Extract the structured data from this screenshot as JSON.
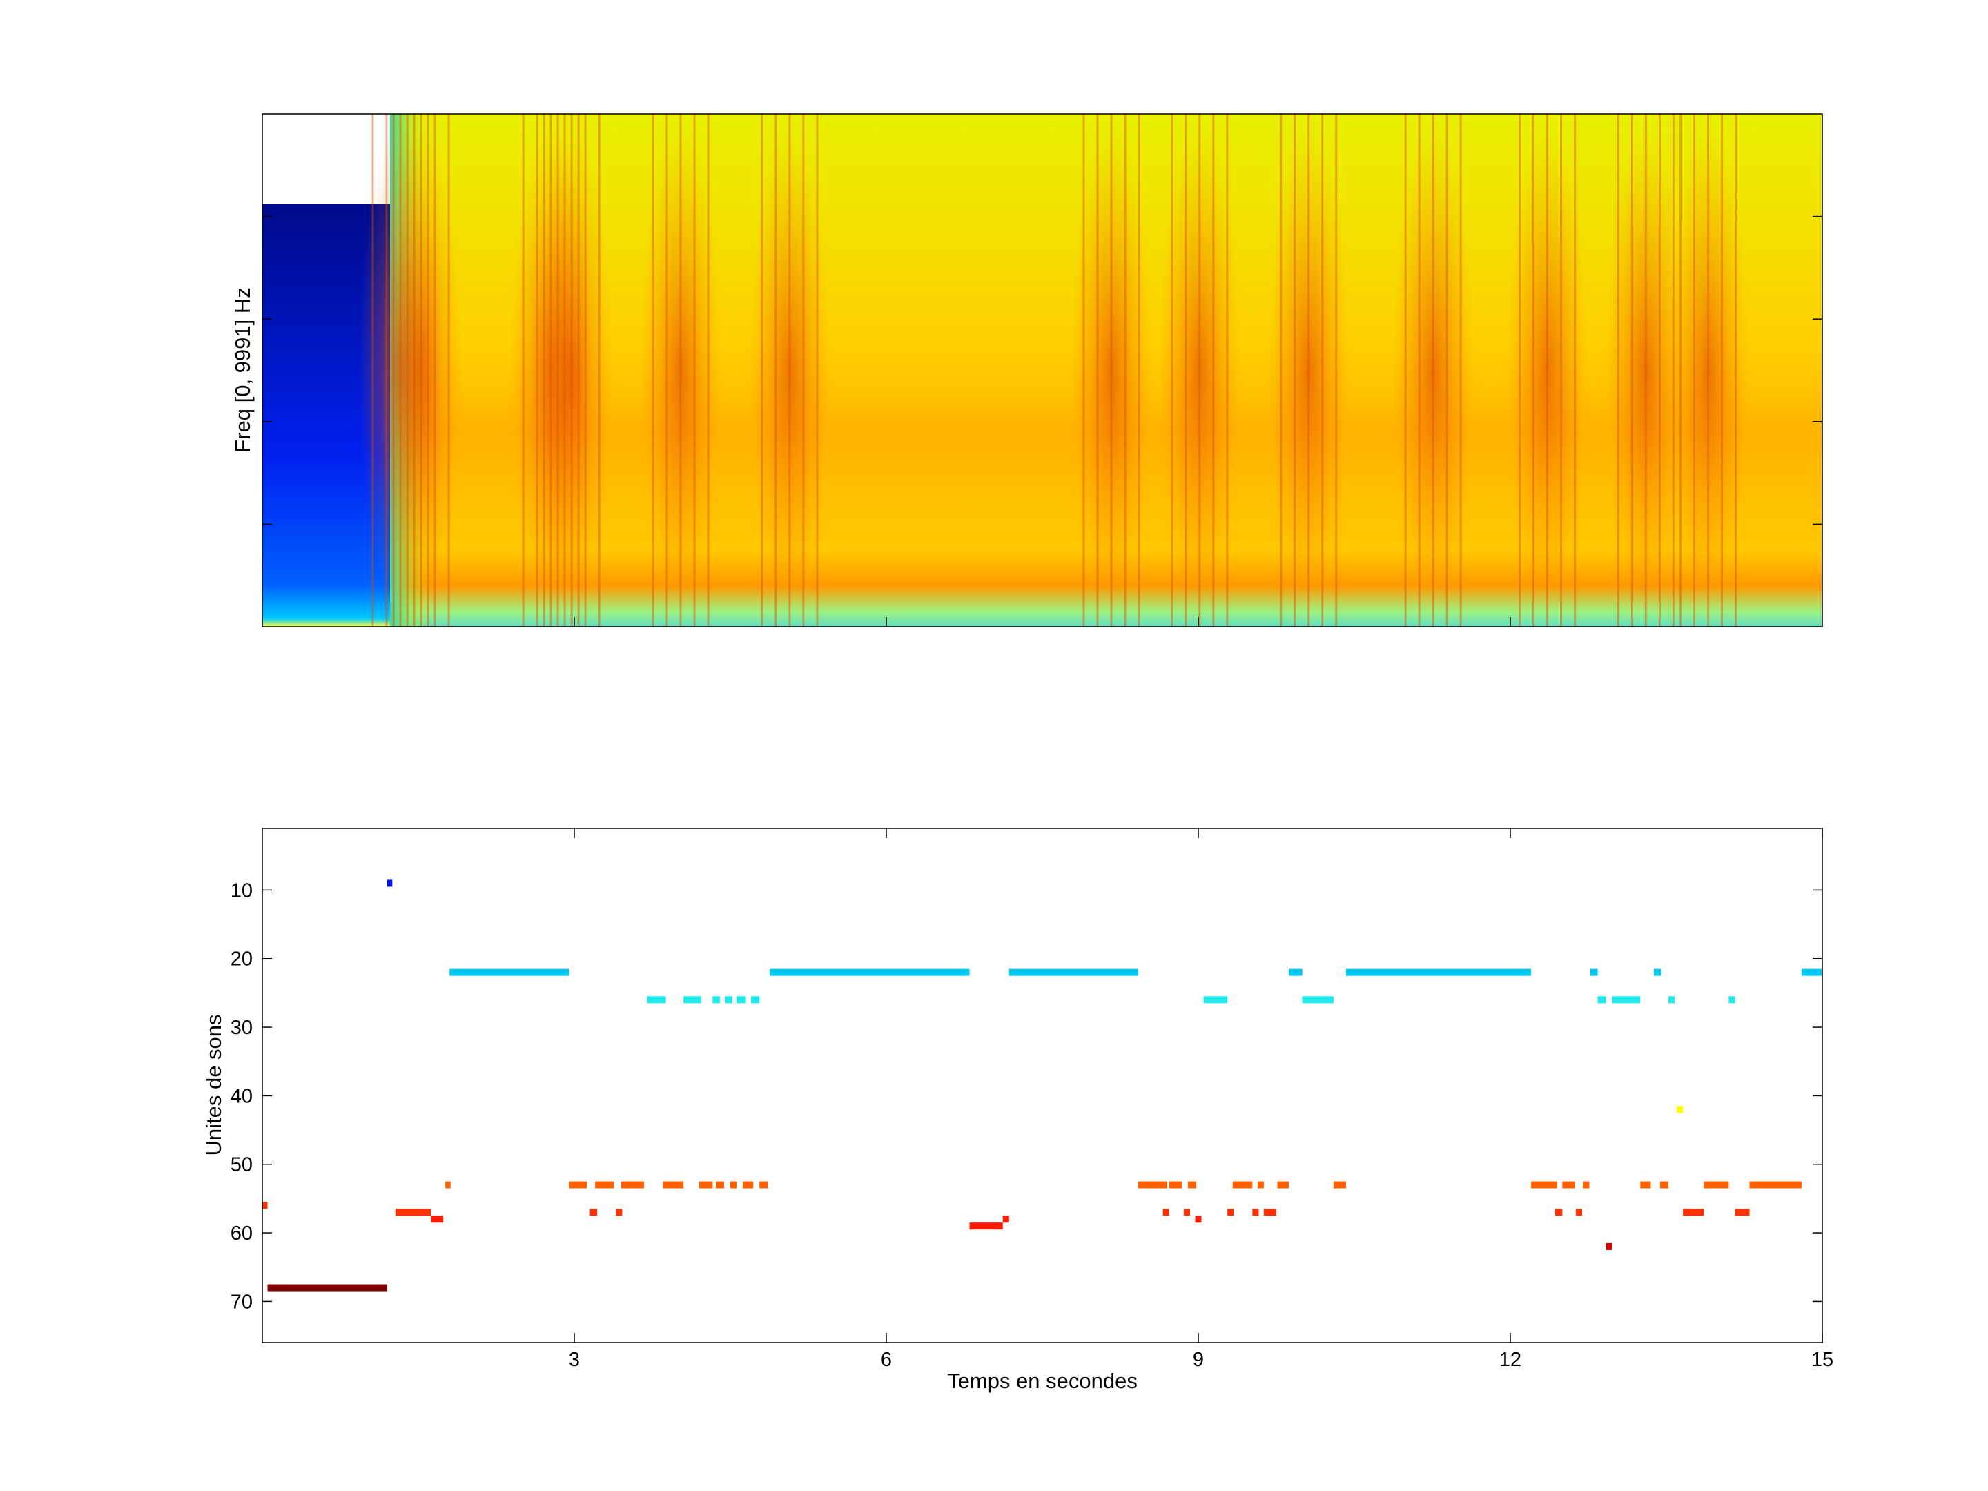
{
  "colors": {
    "axis": "#000000",
    "background": "#ffffff",
    "jet_low": "#00008f",
    "jet_mid_low": "#00ffff",
    "jet_mid": "#ffff00",
    "jet_high": "#ff0000",
    "jet_max": "#800000"
  },
  "chart_data": [
    {
      "type": "heatmap",
      "title": "",
      "xlabel": "",
      "ylabel": "Freq [0, 9991] Hz",
      "xlim": [
        0,
        15
      ],
      "ylim": [
        0,
        9991
      ],
      "colormap": "jet",
      "description_of_content": "spectrogram",
      "events_x": [
        1.3,
        1.5,
        2.75,
        2.95,
        4.0,
        5.05,
        8.15,
        9.0,
        10.05,
        11.25,
        12.35,
        13.3,
        13.9
      ]
    },
    {
      "type": "scatter",
      "title": "",
      "xlabel": "Temps en secondes",
      "ylabel": "Unites de sons",
      "xlim": [
        0,
        15
      ],
      "ylim": [
        76,
        1
      ],
      "y_reversed": true,
      "xticks": [
        "3",
        "6",
        "9",
        "12",
        "15"
      ],
      "yticks": [
        "10",
        "20",
        "30",
        "40",
        "50",
        "60",
        "70"
      ],
      "segments": [
        {
          "unit": 68,
          "x0": 0.05,
          "x1": 1.2,
          "color": "#800000"
        },
        {
          "unit": 56,
          "x0": 0.0,
          "x1": 0.05,
          "color": "#ff3000"
        },
        {
          "unit": 9,
          "x0": 1.2,
          "x1": 1.25,
          "color": "#0010ff"
        },
        {
          "unit": 57,
          "x0": 1.28,
          "x1": 1.62,
          "color": "#ff3000"
        },
        {
          "unit": 58,
          "x0": 1.62,
          "x1": 1.74,
          "color": "#ff1a00"
        },
        {
          "unit": 53,
          "x0": 1.76,
          "x1": 1.81,
          "color": "#ff6000"
        },
        {
          "unit": 22,
          "x0": 1.8,
          "x1": 2.95,
          "color": "#00c8f0"
        },
        {
          "unit": 53,
          "x0": 2.95,
          "x1": 3.12,
          "color": "#ff6000"
        },
        {
          "unit": 53,
          "x0": 3.2,
          "x1": 3.38,
          "color": "#ff6000"
        },
        {
          "unit": 53,
          "x0": 3.45,
          "x1": 3.67,
          "color": "#ff6000"
        },
        {
          "unit": 57,
          "x0": 3.15,
          "x1": 3.22,
          "color": "#ff3000"
        },
        {
          "unit": 57,
          "x0": 3.4,
          "x1": 3.46,
          "color": "#ff3000"
        },
        {
          "unit": 26,
          "x0": 3.7,
          "x1": 3.88,
          "color": "#20e8e8"
        },
        {
          "unit": 53,
          "x0": 3.85,
          "x1": 4.05,
          "color": "#ff6000"
        },
        {
          "unit": 26,
          "x0": 4.05,
          "x1": 4.22,
          "color": "#20e8e8"
        },
        {
          "unit": 53,
          "x0": 4.2,
          "x1": 4.33,
          "color": "#ff6000"
        },
        {
          "unit": 26,
          "x0": 4.33,
          "x1": 4.4,
          "color": "#20e8e8"
        },
        {
          "unit": 53,
          "x0": 4.36,
          "x1": 4.44,
          "color": "#ff6000"
        },
        {
          "unit": 26,
          "x0": 4.45,
          "x1": 4.52,
          "color": "#20e8e8"
        },
        {
          "unit": 53,
          "x0": 4.5,
          "x1": 4.56,
          "color": "#ff6000"
        },
        {
          "unit": 26,
          "x0": 4.56,
          "x1": 4.65,
          "color": "#20e8e8"
        },
        {
          "unit": 53,
          "x0": 4.62,
          "x1": 4.72,
          "color": "#ff6000"
        },
        {
          "unit": 26,
          "x0": 4.7,
          "x1": 4.78,
          "color": "#20e8e8"
        },
        {
          "unit": 53,
          "x0": 4.78,
          "x1": 4.86,
          "color": "#ff6000"
        },
        {
          "unit": 22,
          "x0": 4.88,
          "x1": 6.8,
          "color": "#00c8f0"
        },
        {
          "unit": 59,
          "x0": 6.8,
          "x1": 7.12,
          "color": "#ff1a00"
        },
        {
          "unit": 58,
          "x0": 7.12,
          "x1": 7.18,
          "color": "#ff1a00"
        },
        {
          "unit": 22,
          "x0": 7.18,
          "x1": 8.42,
          "color": "#00c8f0"
        },
        {
          "unit": 53,
          "x0": 8.42,
          "x1": 8.7,
          "color": "#ff6000"
        },
        {
          "unit": 57,
          "x0": 8.66,
          "x1": 8.72,
          "color": "#ff3000"
        },
        {
          "unit": 53,
          "x0": 8.72,
          "x1": 8.84,
          "color": "#ff6000"
        },
        {
          "unit": 57,
          "x0": 8.86,
          "x1": 8.92,
          "color": "#ff3000"
        },
        {
          "unit": 53,
          "x0": 8.9,
          "x1": 8.98,
          "color": "#ff6000"
        },
        {
          "unit": 58,
          "x0": 8.97,
          "x1": 9.03,
          "color": "#ff1a00"
        },
        {
          "unit": 26,
          "x0": 9.05,
          "x1": 9.28,
          "color": "#20e8e8"
        },
        {
          "unit": 57,
          "x0": 9.28,
          "x1": 9.34,
          "color": "#ff3000"
        },
        {
          "unit": 53,
          "x0": 9.33,
          "x1": 9.52,
          "color": "#ff6000"
        },
        {
          "unit": 57,
          "x0": 9.52,
          "x1": 9.58,
          "color": "#ff3000"
        },
        {
          "unit": 53,
          "x0": 9.57,
          "x1": 9.63,
          "color": "#ff6000"
        },
        {
          "unit": 57,
          "x0": 9.63,
          "x1": 9.75,
          "color": "#ff3000"
        },
        {
          "unit": 53,
          "x0": 9.76,
          "x1": 9.87,
          "color": "#ff6000"
        },
        {
          "unit": 22,
          "x0": 9.87,
          "x1": 10.0,
          "color": "#00c8f0"
        },
        {
          "unit": 26,
          "x0": 10.0,
          "x1": 10.3,
          "color": "#20e8e8"
        },
        {
          "unit": 53,
          "x0": 10.3,
          "x1": 10.42,
          "color": "#ff6000"
        },
        {
          "unit": 22,
          "x0": 10.42,
          "x1": 12.2,
          "color": "#00c8f0"
        },
        {
          "unit": 53,
          "x0": 12.2,
          "x1": 12.45,
          "color": "#ff6000"
        },
        {
          "unit": 57,
          "x0": 12.43,
          "x1": 12.5,
          "color": "#ff3000"
        },
        {
          "unit": 53,
          "x0": 12.5,
          "x1": 12.62,
          "color": "#ff6000"
        },
        {
          "unit": 57,
          "x0": 12.63,
          "x1": 12.69,
          "color": "#ff3000"
        },
        {
          "unit": 53,
          "x0": 12.7,
          "x1": 12.76,
          "color": "#ff6000"
        },
        {
          "unit": 22,
          "x0": 12.77,
          "x1": 12.84,
          "color": "#00c8f0"
        },
        {
          "unit": 26,
          "x0": 12.84,
          "x1": 12.92,
          "color": "#20e8e8"
        },
        {
          "unit": 62,
          "x0": 12.92,
          "x1": 12.98,
          "color": "#cc0000"
        },
        {
          "unit": 26,
          "x0": 12.98,
          "x1": 13.25,
          "color": "#20e8e8"
        },
        {
          "unit": 53,
          "x0": 13.25,
          "x1": 13.35,
          "color": "#ff6000"
        },
        {
          "unit": 22,
          "x0": 13.38,
          "x1": 13.45,
          "color": "#00c8f0"
        },
        {
          "unit": 53,
          "x0": 13.44,
          "x1": 13.52,
          "color": "#ff6000"
        },
        {
          "unit": 26,
          "x0": 13.52,
          "x1": 13.58,
          "color": "#20e8e8"
        },
        {
          "unit": 42,
          "x0": 13.6,
          "x1": 13.66,
          "color": "#ffff00"
        },
        {
          "unit": 57,
          "x0": 13.66,
          "x1": 13.86,
          "color": "#ff3000"
        },
        {
          "unit": 53,
          "x0": 13.86,
          "x1": 14.1,
          "color": "#ff6000"
        },
        {
          "unit": 26,
          "x0": 14.1,
          "x1": 14.16,
          "color": "#20e8e8"
        },
        {
          "unit": 57,
          "x0": 14.16,
          "x1": 14.3,
          "color": "#ff3000"
        },
        {
          "unit": 53,
          "x0": 14.3,
          "x1": 14.8,
          "color": "#ff6000"
        },
        {
          "unit": 22,
          "x0": 14.8,
          "x1": 15.0,
          "color": "#00c8f0"
        }
      ]
    }
  ]
}
